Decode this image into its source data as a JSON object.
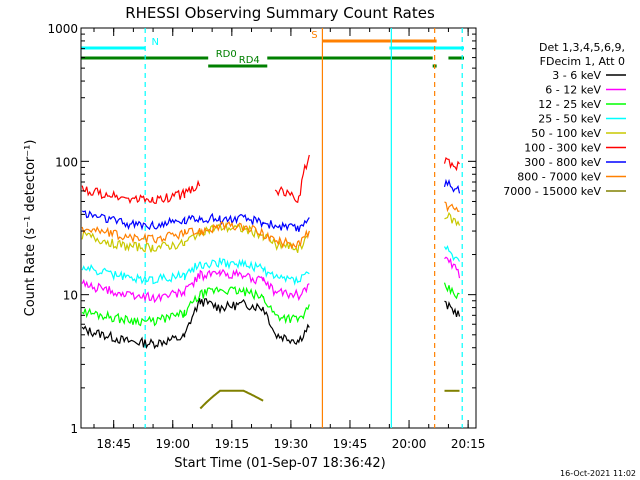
{
  "chart_data": {
    "type": "line",
    "title": "RHESSI Observing Summary Count Rates",
    "xlabel": "Start Time (01-Sep-07 18:36:42)",
    "ylabel": "Count Rate (s⁻¹ detector⁻¹)",
    "y_scale": "log",
    "ylim": [
      1,
      1000
    ],
    "xlim": [
      "18:36:42",
      "20:17:00"
    ],
    "x_ticks": [
      "18:45",
      "19:00",
      "19:15",
      "19:30",
      "19:45",
      "20:00",
      "20:15"
    ],
    "y_ticks": [
      "1",
      "10",
      "100",
      "1000"
    ],
    "legend_header": [
      "Det 1,3,4,5,6,9,",
      "FDecim 1, Att 0"
    ],
    "legend_position": "right",
    "timestamp": "16-Oct-2021 11:02",
    "flags": [
      {
        "label": "N",
        "color": "#00ffff",
        "intervals": [
          [
            "18:36",
            "18:53"
          ],
          [
            "19:55",
            "20:15"
          ]
        ]
      },
      {
        "label": "S",
        "color": "#ff8000",
        "intervals": [
          [
            "19:38",
            "20:07"
          ]
        ]
      },
      {
        "label": "RD0",
        "color": "#008000",
        "intervals": [
          [
            "18:36",
            "19:09"
          ],
          [
            "19:24",
            "20:06"
          ],
          [
            "20:10",
            "20:14"
          ]
        ]
      },
      {
        "label": "RD4",
        "color": "#008000",
        "intervals": [
          [
            "19:09",
            "19:24"
          ],
          [
            "20:06",
            "20:07"
          ]
        ]
      }
    ],
    "vlines": [
      {
        "t": "18:53:00",
        "color": "#00ffff",
        "dash": true
      },
      {
        "t": "19:38:00",
        "color": "#ff8000",
        "dash": false
      },
      {
        "t": "19:55:30",
        "color": "#00ffff",
        "dash": false
      },
      {
        "t": "20:06:30",
        "color": "#ff8000",
        "dash": true
      },
      {
        "t": "20:13:30",
        "color": "#00ffff",
        "dash": true
      }
    ],
    "series": [
      {
        "name": "3 - 6 keV",
        "color": "#000000",
        "values": [
          5.5,
          4.5,
          4.3,
          4.8,
          9,
          8,
          8.5,
          8,
          5,
          4.5,
          6,
          0,
          0,
          8.5,
          7
        ]
      },
      {
        "name": "6 - 12 keV",
        "color": "#ff00ff",
        "values": [
          12,
          10,
          9.5,
          10.5,
          14,
          14.5,
          14,
          12.5,
          10.5,
          10,
          12,
          0,
          0,
          19,
          14
        ]
      },
      {
        "name": "12 - 25 keV",
        "color": "#00ff00",
        "values": [
          7.5,
          6.5,
          6.3,
          7.2,
          10,
          11,
          10.5,
          9.5,
          7,
          6.5,
          8,
          0,
          0,
          11.5,
          9.5
        ]
      },
      {
        "name": "25 - 50 keV",
        "color": "#00ffff",
        "values": [
          16,
          13.5,
          13,
          14,
          17,
          17.5,
          17,
          15.5,
          13.5,
          13,
          15,
          0,
          0,
          23,
          17
        ]
      },
      {
        "name": "50 - 100 keV",
        "color": "#c8c800",
        "values": [
          28,
          23,
          22.5,
          24,
          30,
          32,
          31,
          28,
          24,
          22,
          30,
          0,
          0,
          40,
          33
        ]
      },
      {
        "name": "100 - 300 keV",
        "color": "#ff0000",
        "values": [
          62,
          52,
          51,
          57,
          68,
          0,
          0,
          0,
          62,
          52,
          120,
          0,
          0,
          100,
          92
        ]
      },
      {
        "name": "300 - 800 keV",
        "color": "#0000ff",
        "values": [
          41,
          34,
          33,
          36,
          38,
          37,
          37,
          35,
          33,
          31,
          40,
          0,
          0,
          68,
          62
        ]
      },
      {
        "name": "800 - 7000 keV",
        "color": "#ff8000",
        "values": [
          32,
          27,
          26,
          29,
          30,
          33,
          32,
          29,
          25,
          24,
          30,
          0,
          0,
          48,
          40
        ]
      },
      {
        "name": "7000 - 15000 keV",
        "color": "#808000",
        "values": [
          0,
          0,
          0,
          0,
          1.4,
          1.9,
          1.9,
          1.6,
          0,
          0,
          0,
          0,
          0,
          1.9,
          1.9
        ]
      }
    ],
    "x_samples": [
      "18:37",
      "18:48",
      "18:55",
      "19:03",
      "19:07",
      "19:12",
      "19:18",
      "19:23",
      "19:26",
      "19:32",
      "19:35",
      "19:45",
      "20:00",
      "20:09",
      "20:13"
    ]
  }
}
